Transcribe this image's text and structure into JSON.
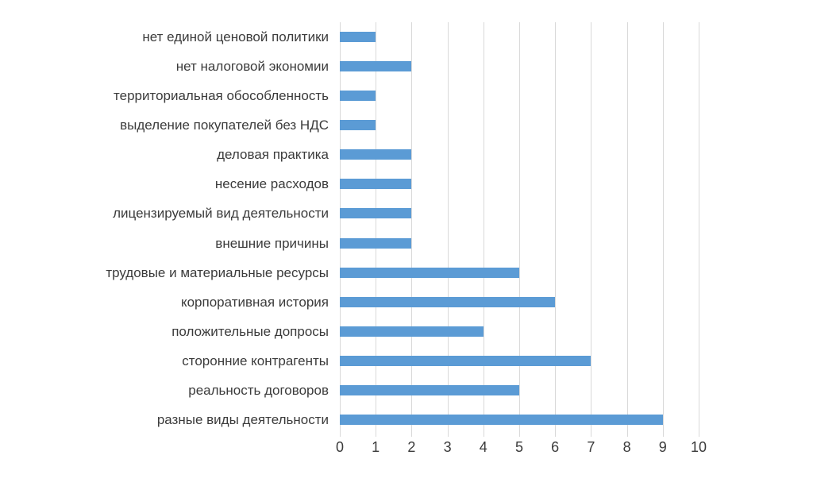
{
  "chart_data": {
    "type": "bar",
    "orientation": "horizontal",
    "title": "",
    "xlabel": "",
    "ylabel": "",
    "categories": [
      "нет единой ценовой политики",
      "нет налоговой экономии",
      "территориальная обособленность",
      "выделение покупателей без НДС",
      "деловая практика",
      "несение расходов",
      "лицензируемый вид деятельности",
      "внешние причины",
      "трудовые и материальные ресурсы",
      "корпоративная история",
      "положительные допросы",
      "сторонние контрагенты",
      "реальность договоров",
      "разные виды деятельности"
    ],
    "values": [
      1,
      2,
      1,
      1,
      2,
      2,
      2,
      2,
      5,
      6,
      4,
      7,
      5,
      9
    ],
    "xlim": [
      0,
      10
    ],
    "x_ticks": [
      "0",
      "1",
      "2",
      "3",
      "4",
      "5",
      "6",
      "7",
      "8",
      "9",
      "10"
    ],
    "grid": true,
    "legend": "none",
    "colors": {
      "bar": "#5b9bd5",
      "gridline": "#d9d9d9",
      "text": "#3b3b3b",
      "background": "#ffffff"
    }
  }
}
